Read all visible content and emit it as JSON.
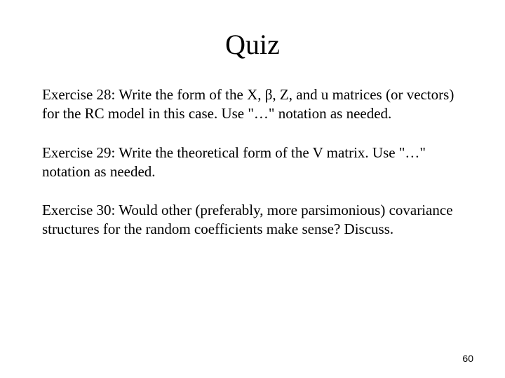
{
  "title": "Quiz",
  "exercises": [
    {
      "text": "Exercise 28:  Write the form of the X, β, Z, and u matrices (or vectors) for the RC model in this case.  Use \"…\" notation as needed."
    },
    {
      "text": "Exercise 29: Write the theoretical form of the V matrix.  Use \"…\" notation as needed."
    },
    {
      "text": "Exercise 30:  Would other (preferably, more parsimonious) covariance structures for the random coefficients make sense?  Discuss."
    }
  ],
  "pageNumber": "60",
  "styling": {
    "background_color": "#ffffff",
    "text_color": "#000000",
    "title_fontsize": 40,
    "body_fontsize": 21,
    "pagenum_fontsize": 14,
    "font_family": "Times New Roman"
  }
}
